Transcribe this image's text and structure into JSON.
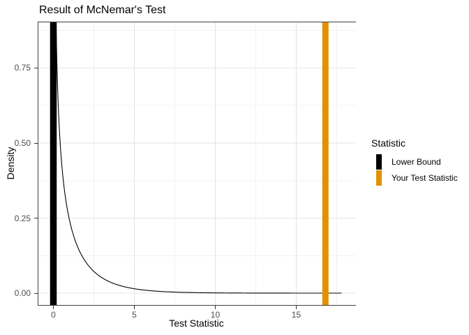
{
  "title": "Result of McNemar's Test",
  "axes": {
    "x": {
      "title": "Test Statistic",
      "tick_labels": [
        "0",
        "5",
        "10",
        "15"
      ]
    },
    "y": {
      "title": "Density",
      "tick_labels": [
        "0.00",
        "0.25",
        "0.50",
        "0.75"
      ]
    }
  },
  "legend": {
    "title": "Statistic",
    "items": [
      {
        "label": "Lower Bound",
        "color": "#000000"
      },
      {
        "label": "Your Test Statistic",
        "color": "#E29100"
      }
    ]
  },
  "colors": {
    "background": "#FFFFFF",
    "panel_background": "#FFFFFF",
    "panel_border": "#404040",
    "grid_major": "#E4E4E4",
    "grid_minor": "#F1F1F1",
    "tick_mark": "#333333",
    "tick_label": "#4D4D4D",
    "curve": "#000000"
  },
  "chart_data": {
    "type": "line",
    "title": "Result of McNemar's Test",
    "xlabel": "Test Statistic",
    "ylabel": "Density",
    "xlim": [
      -0.948,
      18.664
    ],
    "ylim": [
      -0.0395,
      0.9023
    ],
    "x_ticks": [
      0,
      5,
      10,
      15
    ],
    "y_ticks": [
      0,
      0.25,
      0.5,
      0.75
    ],
    "x_minor_ticks": [
      2.5,
      7.5,
      12.5,
      17.5
    ],
    "y_minor_ticks": [
      0.125,
      0.375,
      0.625,
      0.875
    ],
    "grid": true,
    "legend_position": "right",
    "curve": {
      "name": "chi-squared density",
      "distribution": "chi-squared",
      "df": 1,
      "x_start": 0.15,
      "x_end": 17.8,
      "color": "#000000"
    },
    "vlines": [
      {
        "x": 0,
        "label": "Lower Bound",
        "color": "#000000",
        "thickness_px": 9.5
      },
      {
        "x": 16.8,
        "label": "Your Test Statistic",
        "color": "#E29100",
        "thickness_px": 9
      }
    ]
  }
}
